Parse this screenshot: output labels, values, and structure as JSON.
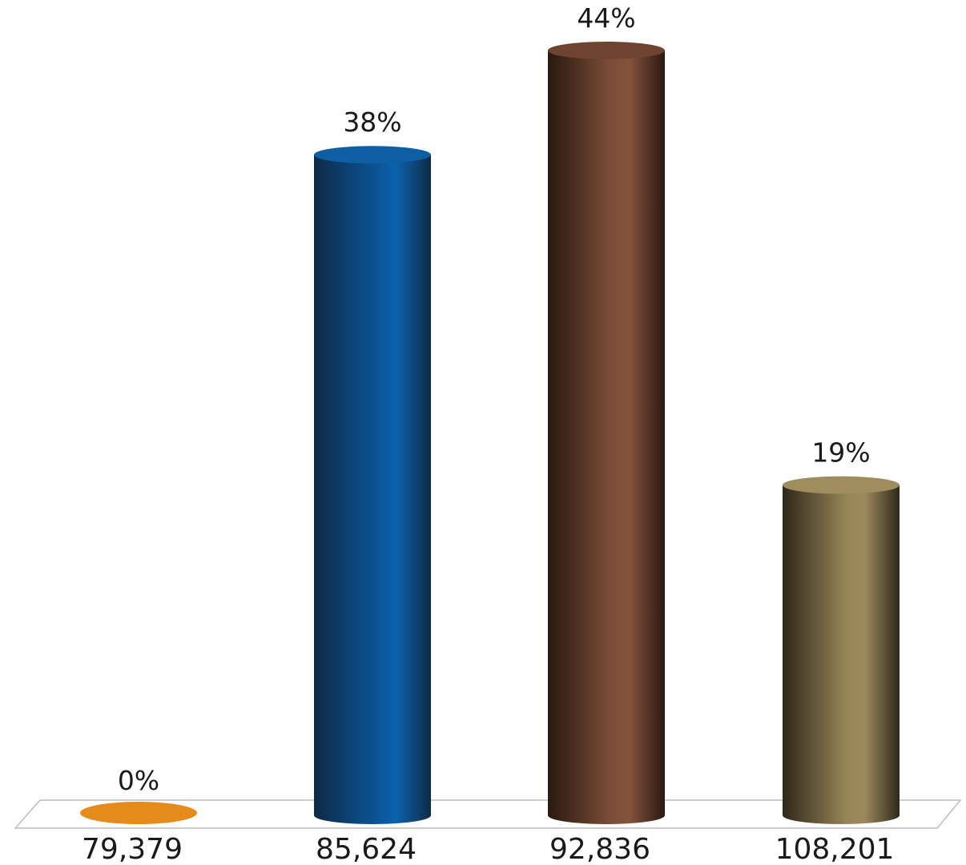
{
  "chart_data": {
    "type": "bar",
    "categories": [
      "79,379",
      "85,624",
      "92,836",
      "108,201"
    ],
    "values": [
      0,
      38,
      44,
      19
    ],
    "value_labels": [
      "0%",
      "38%",
      "44%",
      "19%"
    ],
    "ylim": [
      0,
      44
    ],
    "grid": false,
    "legend": "none",
    "colors": [
      {
        "dark": "#b86410",
        "mid": "#e58b1c",
        "light": "#f29a2e",
        "top": "#e5861a"
      },
      {
        "dark": "#0e2a47",
        "mid": "#0a5598",
        "light": "#0d62ad",
        "top": "#0d5ea3"
      },
      {
        "dark": "#2a1810",
        "mid": "#7d4f38",
        "light": "#85533c",
        "top": "#6e4330"
      },
      {
        "dark": "#2f2819",
        "mid": "#988558",
        "light": "#9d895c",
        "top": "#a08d5f"
      }
    ]
  }
}
